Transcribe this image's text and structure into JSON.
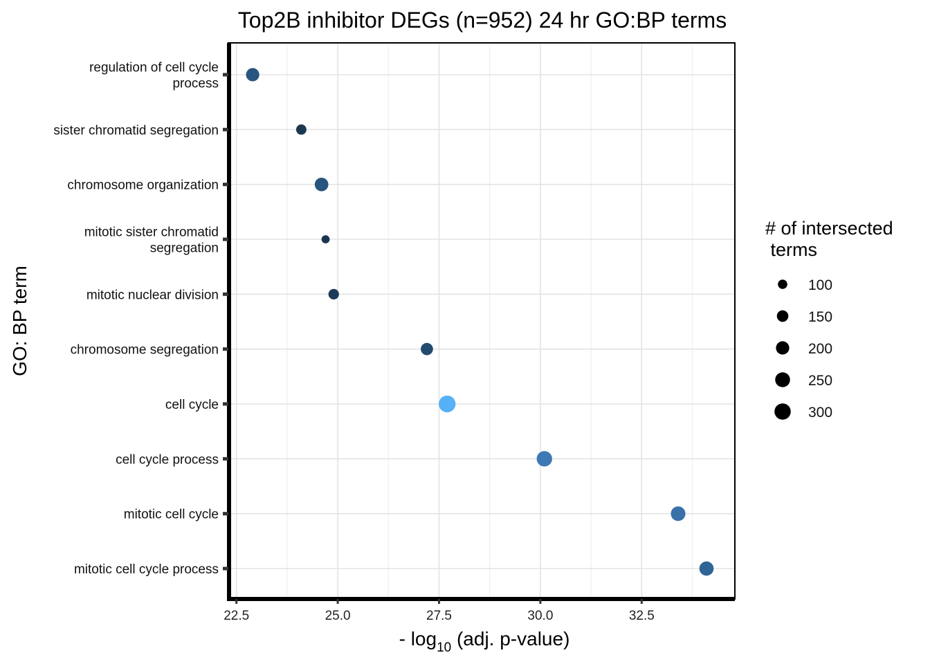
{
  "chart_data": {
    "type": "scatter",
    "title": "Top2B inhibitor DEGs (n=952) 24 hr GO:BP terms",
    "xlabel": {
      "prefix": "- log",
      "sub": "10",
      "suffix": " (adj. p-value)"
    },
    "ylabel": "GO: BP term",
    "xlim": [
      22.3,
      34.8
    ],
    "xticks": [
      "22.5",
      "25.0",
      "27.5",
      "30.0",
      "32.5"
    ],
    "grid": true,
    "legend": {
      "position": "right",
      "title_lines": [
        "# of intersected",
        " terms"
      ],
      "sizes": [
        "100",
        "150",
        "200",
        "250",
        "300"
      ]
    },
    "categories": [
      {
        "lines": [
          "regulation of cell cycle",
          "process"
        ]
      },
      {
        "lines": [
          "sister chromatid segregation"
        ]
      },
      {
        "lines": [
          "chromosome organization"
        ]
      },
      {
        "lines": [
          "mitotic sister chromatid",
          "segregation"
        ]
      },
      {
        "lines": [
          "mitotic nuclear division"
        ]
      },
      {
        "lines": [
          "chromosome segregation"
        ]
      },
      {
        "lines": [
          "cell cycle"
        ]
      },
      {
        "lines": [
          "cell cycle process"
        ]
      },
      {
        "lines": [
          "mitotic cell cycle"
        ]
      },
      {
        "lines": [
          "mitotic cell cycle process"
        ]
      }
    ],
    "points": [
      {
        "term": "regulation of cell cycle process",
        "x": 22.9,
        "size": 200,
        "color": "#2a5580"
      },
      {
        "term": "sister chromatid segregation",
        "x": 24.1,
        "size": 120,
        "color": "#1c3850"
      },
      {
        "term": "chromosome organization",
        "x": 24.6,
        "size": 210,
        "color": "#28557e"
      },
      {
        "term": "mitotic sister chromatid segregation",
        "x": 24.7,
        "size": 75,
        "color": "#1a3550"
      },
      {
        "term": "mitotic nuclear division",
        "x": 24.9,
        "size": 125,
        "color": "#1c3a56"
      },
      {
        "term": "chromosome segregation",
        "x": 27.2,
        "size": 170,
        "color": "#234a6e"
      },
      {
        "term": "cell cycle",
        "x": 27.7,
        "size": 320,
        "color": "#56b1f7"
      },
      {
        "term": "cell cycle process",
        "x": 30.1,
        "size": 270,
        "color": "#3d7ab5"
      },
      {
        "term": "mitotic cell cycle",
        "x": 33.4,
        "size": 240,
        "color": "#3870a8"
      },
      {
        "term": "mitotic cell cycle process",
        "x": 34.1,
        "size": 230,
        "color": "#2e6496"
      }
    ]
  }
}
